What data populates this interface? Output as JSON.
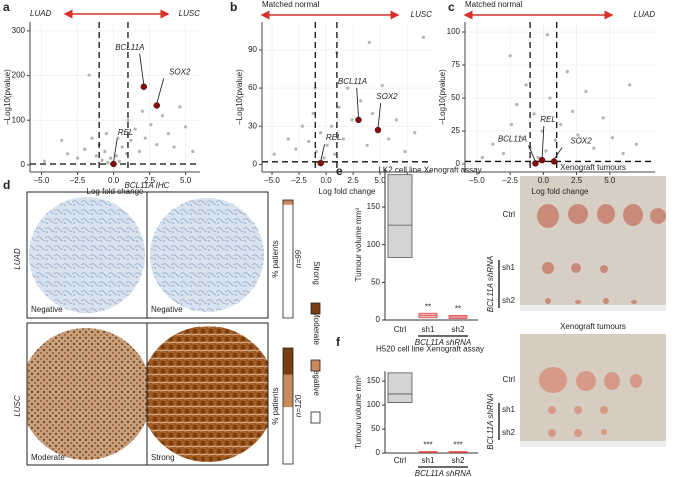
{
  "chart_data": [
    {
      "type": "volcano",
      "panel": "a",
      "left_label": "LUAD",
      "right_label": "LUSC",
      "xlabel": "Log fold change",
      "ylabel": "–Log10(pvalue)",
      "xlim": [
        -5.8,
        6.0
      ],
      "ylim": [
        -16,
        320
      ],
      "xticks": [
        {
          "value": -5,
          "label": "–5.0"
        },
        {
          "value": -2.5,
          "label": "–2.5"
        },
        {
          "value": 0,
          "label": "0.0"
        },
        2.5,
        {
          "value": 5,
          "label": "5.0"
        }
      ],
      "yticks": [
        0,
        100,
        200,
        300
      ],
      "grid": true,
      "vlines": [
        -1,
        1
      ],
      "hline": 2,
      "color": "#b3b3b3",
      "points": {
        "x": [
          -4.8,
          -3.6,
          -3.2,
          -2.5,
          -2.0,
          -1.7,
          -1.5,
          -1.2,
          -1.0,
          -0.8,
          -0.6,
          -0.4,
          -0.2,
          0,
          0.2,
          0.4,
          0.6,
          0.9,
          1.2,
          1.5,
          1.8,
          2.2,
          2.6,
          3.0,
          3.4,
          3.8,
          4.2,
          4.6,
          5.0,
          5.5,
          0.3,
          -0.5,
          1.0,
          2.0
        ],
        "y": [
          8,
          55,
          25,
          15,
          35,
          201,
          60,
          20,
          45,
          10,
          30,
          5,
          15,
          3,
          20,
          8,
          40,
          25,
          55,
          80,
          30,
          60,
          90,
          45,
          110,
          70,
          40,
          130,
          85,
          30,
          60,
          70,
          100,
          120
        ]
      },
      "highlights": {
        "labels": [
          "BCL11A",
          "SOX2",
          "REL"
        ],
        "x": [
          2.1,
          3.0,
          0
        ],
        "y": [
          175,
          133,
          2
        ],
        "color": "#8b0a0a"
      }
    },
    {
      "type": "volcano",
      "panel": "b",
      "left_label": "Matched normal",
      "right_label": "LUSC",
      "xlabel": "Log fold change",
      "ylabel": "–Log10(pvalue)",
      "xlim": [
        -5.93,
        9.8
      ],
      "ylim": [
        -6,
        112
      ],
      "xticks": [
        {
          "value": -5,
          "label": "–5.0"
        },
        {
          "value": -2.5,
          "label": "–2.5"
        },
        {
          "value": 0,
          "label": "0.0"
        },
        2.5,
        {
          "value": 5,
          "label": "5.0"
        },
        7.5
      ],
      "yticks": [
        0,
        30,
        60,
        90
      ],
      "grid": true,
      "vlines": [
        -1,
        1
      ],
      "hline": 2,
      "color": "#b3b3b3",
      "points": {
        "x": [
          -4.8,
          -3.5,
          -2.8,
          -2.2,
          -1.6,
          -1.2,
          -0.9,
          -0.5,
          -0.2,
          0.1,
          0.5,
          0.8,
          1.2,
          1.6,
          2.0,
          2.4,
          3.2,
          3.8,
          4.3,
          5.2,
          5.8,
          6.5,
          7.3,
          8.2,
          9.0,
          4.0,
          -1.0,
          1.0
        ],
        "y": [
          8,
          20,
          12,
          30,
          18,
          40,
          10,
          25,
          5,
          15,
          30,
          8,
          45,
          20,
          60,
          35,
          50,
          15,
          40,
          62,
          20,
          35,
          10,
          25,
          100,
          96,
          60,
          88
        ]
      },
      "highlights": {
        "labels": [
          "BCL11A",
          "SOX2",
          "REL"
        ],
        "x": [
          3.0,
          4.8,
          -0.5
        ],
        "y": [
          35,
          27,
          1
        ],
        "color": "#8b0a0a"
      }
    },
    {
      "type": "volcano",
      "panel": "c",
      "left_label": "Matched normal",
      "right_label": "LUAD",
      "xlabel": "Log fold change",
      "ylabel": "–Log10(pvalue)",
      "xlim": [
        -5.9,
        8.4
      ],
      "ylim": [
        -6,
        107.6
      ],
      "xticks": [
        {
          "value": -5,
          "label": "–5.0"
        },
        {
          "value": -2.5,
          "label": "–2.5"
        },
        {
          "value": 0,
          "label": "0.0"
        },
        2.5,
        {
          "value": 5,
          "label": "5.0"
        }
      ],
      "yticks": [
        0,
        25,
        50,
        75,
        100
      ],
      "grid": true,
      "vlines": [
        -1,
        1
      ],
      "hline": 2,
      "color": "#b3b3b3",
      "points": {
        "x": [
          -4.6,
          -3.8,
          -3.0,
          -2.4,
          -2.0,
          -1.6,
          -1.3,
          -1.0,
          -0.7,
          -0.4,
          -0.1,
          0.2,
          0.5,
          0.9,
          1.3,
          1.8,
          2.2,
          2.6,
          3.2,
          3.8,
          4.5,
          5.2,
          6.0,
          6.5,
          7.0,
          0.3,
          -2.5
        ],
        "y": [
          5,
          15,
          8,
          30,
          45,
          20,
          60,
          12,
          38,
          5,
          25,
          10,
          50,
          18,
          30,
          70,
          40,
          22,
          55,
          12,
          35,
          20,
          8,
          60,
          15,
          98,
          82
        ]
      },
      "highlights": {
        "labels": [
          "BCL11A",
          "REL",
          "SOX2"
        ],
        "x": [
          -0.6,
          -0.1,
          0.8
        ],
        "y": [
          0.5,
          3,
          2
        ],
        "color": "#8b0a0a"
      }
    },
    {
      "type": "stacked_bar",
      "panel": "d",
      "title": "BCL11A IHC",
      "categories": [
        "LUAD",
        "LUSC"
      ],
      "image_labels": [
        "Negative",
        "Negative",
        "Moderate",
        "Strong"
      ],
      "ylabel": "% patients",
      "n_labels": [
        "n=99",
        "n=120"
      ],
      "ylim": [
        0,
        100
      ],
      "series": [
        {
          "name": "Negative",
          "color": "#ffffff",
          "values": [
            96,
            49
          ]
        },
        {
          "name": "Moderate",
          "color": "#c88a5c",
          "values": [
            4,
            28
          ]
        },
        {
          "name": "Strong",
          "color": "#7a3d12",
          "values": [
            0,
            23
          ]
        }
      ]
    },
    {
      "type": "box",
      "panel": "e",
      "title": "LK2 cell line Xenograft assay",
      "ylabel": "Tumour volume mm³",
      "categories": [
        "Ctrl",
        "sh1",
        "sh2"
      ],
      "group_label": "BCL11A shRNA",
      "ylim": [
        0,
        200
      ],
      "yticks": [
        0,
        50,
        100,
        150
      ],
      "boxes": [
        {
          "q1": 83,
          "median": 126,
          "q3": 193
        },
        {
          "q1": 3,
          "median": 6,
          "q3": 9
        },
        {
          "q1": 2,
          "median": 4,
          "q3": 6
        }
      ],
      "colors": [
        "#d4d4d4",
        "#f4b8b8",
        "#f4b8b8"
      ],
      "annotations": [
        null,
        "**",
        "**"
      ]
    },
    {
      "type": "box",
      "panel": "f",
      "title": "H520 cell line Xenograft assay",
      "ylabel": "Tumour volume mm³",
      "categories": [
        "Ctrl",
        "sh1",
        "sh2"
      ],
      "group_label": "BCL11A shRNA",
      "ylim": [
        0,
        170
      ],
      "yticks": [
        0,
        50,
        100,
        150
      ],
      "boxes": [
        {
          "q1": 105,
          "median": 123,
          "q3": 167
        },
        {
          "q1": 1,
          "median": 2,
          "q3": 3
        },
        {
          "q1": 1,
          "median": 2,
          "q3": 3
        }
      ],
      "colors": [
        "#d4d4d4",
        "#f4b8b8",
        "#f4b8b8"
      ],
      "annotations": [
        null,
        "***",
        "***"
      ]
    }
  ],
  "xenograft_photos": [
    {
      "title": "Xenograft tumours",
      "rows": [
        "Ctrl",
        "sh1",
        "sh2"
      ],
      "group": "BCL11A shRNA"
    },
    {
      "title": "Xenograft tumours",
      "rows": [
        "Ctrl",
        "sh1",
        "sh2"
      ],
      "group": "BCL11A shRNA"
    }
  ]
}
